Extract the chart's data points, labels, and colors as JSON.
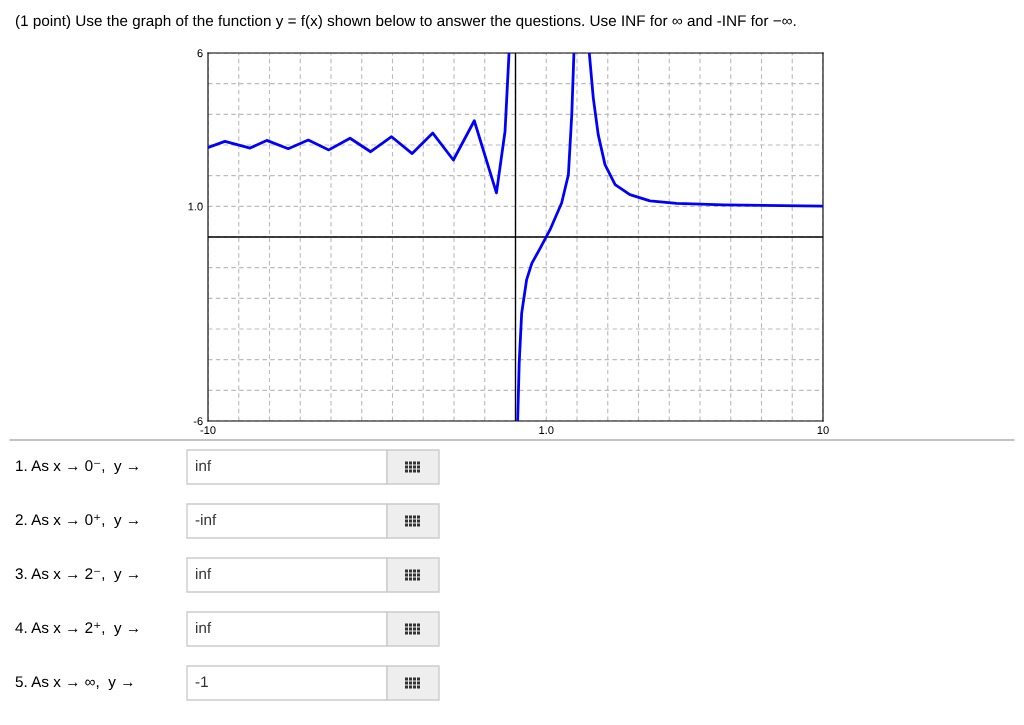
{
  "chart_data": {
    "type": "line",
    "title": "(1 point) Use the graph of the function y = f(x) shown below to answer the questions. Use INF for ∞ and -INF for −∞.",
    "series": [
      {
        "color": "#0000ff",
        "x": [
          -10,
          -9.45,
          -8.63,
          -8.09,
          -7.39,
          -6.74,
          -6.07,
          -5.38,
          -4.71,
          -4.03,
          -3.36,
          -2.69,
          -2.02,
          -1.34,
          -0.62,
          -0.34,
          -0.21
        ],
        "values": [
          2.92,
          3.12,
          2.9,
          3.15,
          2.88,
          3.16,
          2.84,
          3.22,
          2.78,
          3.27,
          2.72,
          3.39,
          2.51,
          3.79,
          1.44,
          3.45,
          6
        ]
      },
      {
        "color": "#0000ff",
        "x": [
          0.07,
          0.12,
          0.2,
          0.36,
          0.53,
          0.8,
          1.12,
          1.5,
          1.72,
          1.83,
          1.9
        ],
        "values": [
          -6,
          -4.12,
          -2.49,
          -1.4,
          -0.86,
          -0.37,
          0.23,
          1.11,
          2.03,
          3.99,
          6
        ]
      },
      {
        "color": "#0000ff",
        "x": [
          2.4,
          2.53,
          2.69,
          2.91,
          3.24,
          3.72,
          4.37,
          5.24,
          6.76,
          10
        ],
        "values": [
          6,
          4.53,
          3.34,
          2.36,
          1.71,
          1.38,
          1.18,
          1.1,
          1.05,
          1.01
        ]
      }
    ],
    "xlim": [
      -10,
      10
    ],
    "xticks": [
      {
        "value": -10,
        "label": "-10"
      },
      {
        "value": -9,
        "label": null
      },
      {
        "value": -8,
        "label": null
      },
      {
        "value": -7,
        "label": null
      },
      {
        "value": -6,
        "label": null
      },
      {
        "value": -5,
        "label": null
      },
      {
        "value": -4,
        "label": null
      },
      {
        "value": -3,
        "label": null
      },
      {
        "value": -2,
        "label": null
      },
      {
        "value": -1,
        "label": null
      },
      {
        "value": 0,
        "label": null
      },
      {
        "value": 1,
        "label": "1.0"
      },
      {
        "value": 2,
        "label": null
      },
      {
        "value": 3,
        "label": null
      },
      {
        "value": 4,
        "label": null
      },
      {
        "value": 5,
        "label": null
      },
      {
        "value": 6,
        "label": null
      },
      {
        "value": 7,
        "label": null
      },
      {
        "value": 8,
        "label": null
      },
      {
        "value": 9,
        "label": null
      },
      {
        "value": 10,
        "label": "10"
      }
    ],
    "ylim": [
      -6,
      6
    ],
    "yticks": [
      -6,
      {
        "value": -5,
        "label": null
      },
      {
        "value": -4,
        "label": null
      },
      {
        "value": -3,
        "label": null
      },
      {
        "value": -2,
        "label": null
      },
      {
        "value": -1,
        "label": null
      },
      {
        "value": 0,
        "label": null
      },
      {
        "value": 1,
        "label": "1.0"
      },
      {
        "value": 2,
        "label": null
      },
      {
        "value": 3,
        "label": null
      },
      {
        "value": 4,
        "label": null
      },
      {
        "value": 5,
        "label": null
      },
      6
    ],
    "grid": true,
    "annotations": [
      "1. As x → 0⁻,  y →",
      "inf",
      "2. As x → 0⁺,  y →",
      "-inf",
      "3. As x → 2⁻,  y →",
      "inf",
      "4. As x → 2⁺,  y →",
      "inf",
      "5. As x → ∞,  y →",
      "-1"
    ]
  }
}
